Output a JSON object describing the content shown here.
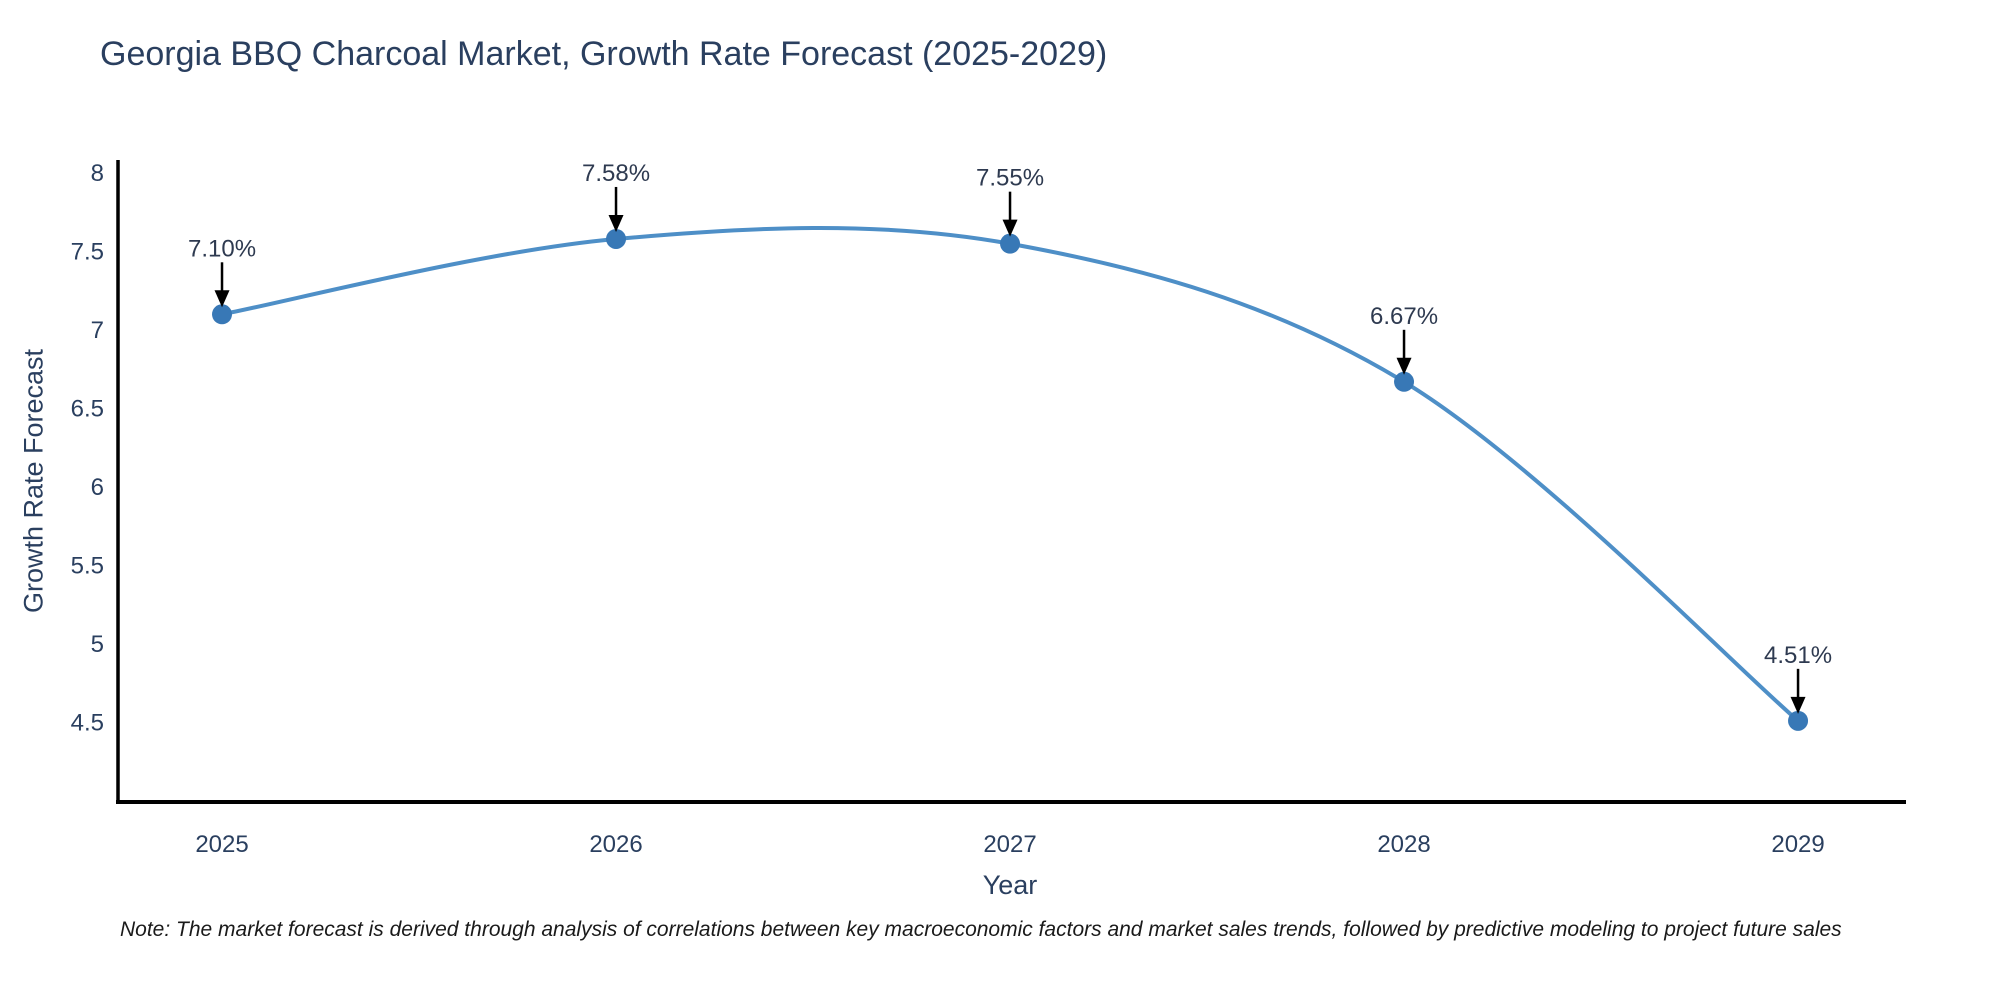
{
  "note": "Note: The market forecast is derived through analysis of correlations between key macroeconomic factors and market sales trends, followed by predictive modeling to project future sales",
  "chart_data": {
    "type": "line",
    "title": "Georgia BBQ Charcoal Market, Growth Rate Forecast (2025-2029)",
    "xlabel": "Year",
    "ylabel": "Growth Rate Forecast",
    "x": [
      2025,
      2026,
      2027,
      2028,
      2029
    ],
    "y": [
      7.1,
      7.58,
      7.55,
      6.67,
      4.51
    ],
    "point_labels": [
      "7.10%",
      "7.58%",
      "7.55%",
      "6.67%",
      "4.51%"
    ],
    "xticks": [
      "2025",
      "2026",
      "2027",
      "2028",
      "2029"
    ],
    "xtick_values": [
      2025,
      2026,
      2027,
      2028,
      2029
    ],
    "yticks": [
      "8",
      "7.5",
      "7",
      "6.5",
      "6",
      "5.5",
      "5",
      "4.5"
    ],
    "ytick_values": [
      8,
      7.5,
      7,
      6.5,
      6,
      5.5,
      5,
      4.5
    ],
    "xlim": [
      2024.736,
      2029.274
    ],
    "ylim": [
      3.993,
      8.083
    ],
    "grid": false,
    "legend": "none",
    "line_shape": "spline",
    "colors": {
      "line": "#4e8fc7",
      "marker": "#3878b6",
      "axis": "#000000",
      "text": "#2a3f5f",
      "annotation_arrow": "#000000"
    }
  }
}
